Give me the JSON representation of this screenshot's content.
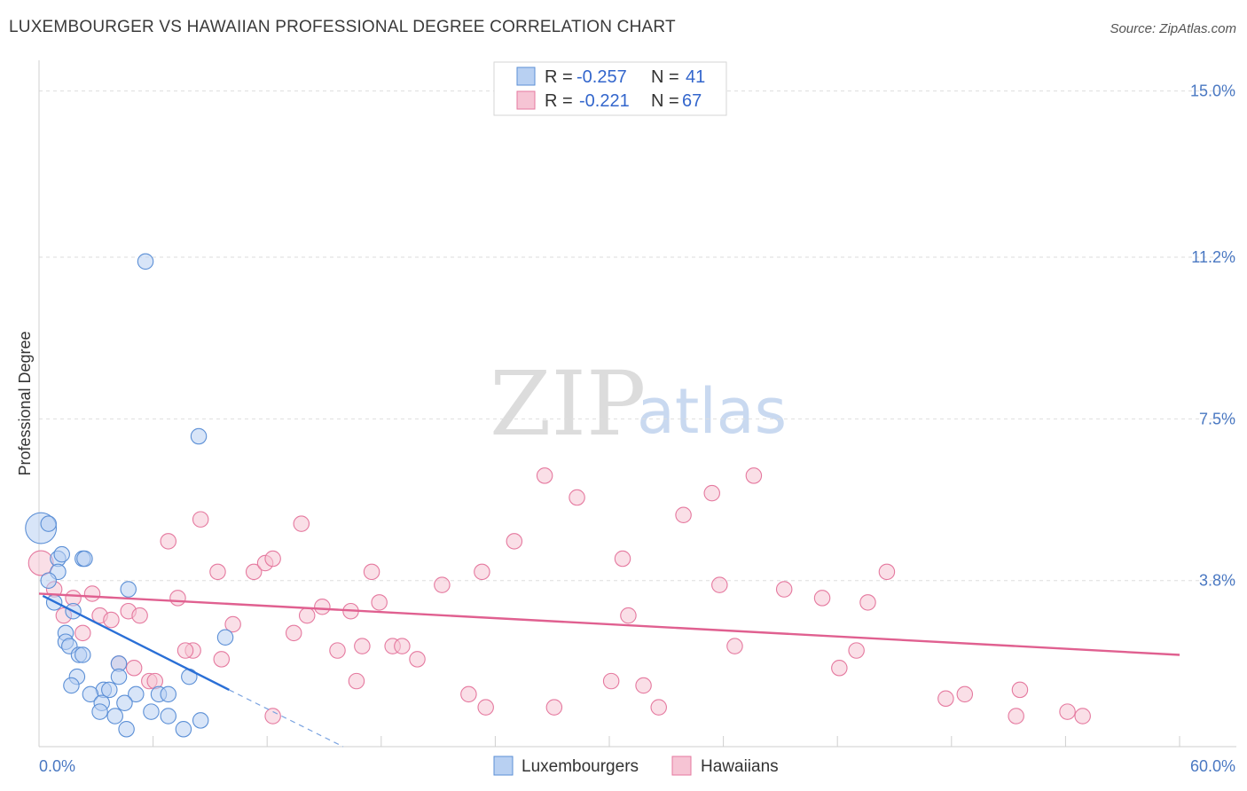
{
  "title": "LUXEMBOURGER VS HAWAIIAN PROFESSIONAL DEGREE CORRELATION CHART",
  "source": "Source: ZipAtlas.com",
  "watermark": {
    "zip": "ZIP",
    "atlas": "atlas"
  },
  "colors": {
    "blue": "#5b8fd6",
    "blue_fill": "#b8d0f2",
    "pink": "#e5799f",
    "pink_fill": "#f6c4d4",
    "axis_text": "#4a78c2"
  },
  "chart_data": {
    "type": "scatter",
    "title": "LUXEMBOURGER VS HAWAIIAN PROFESSIONAL DEGREE CORRELATION CHART",
    "xlabel": "",
    "ylabel": "Professional Degree",
    "xlim": [
      0,
      60
    ],
    "ylim": [
      0,
      15.5
    ],
    "x_tick_labels": [
      "0.0%",
      "60.0%"
    ],
    "y_ticks": [
      3.8,
      7.5,
      11.2,
      15.0
    ],
    "y_tick_labels": [
      "3.8%",
      "7.5%",
      "11.2%",
      "15.0%"
    ],
    "legend_stats": [
      {
        "r_label": "R =",
        "r": "-0.257",
        "n_label": "N =",
        "n": "41"
      },
      {
        "r_label": "R =",
        "r": "-0.221",
        "n_label": "N =",
        "n": "67"
      }
    ],
    "series": [
      {
        "name": "Luxembourgers",
        "trend": {
          "x0": 0.2,
          "y0": 3.45,
          "x1": 10.0,
          "y1": 1.3,
          "dash_to_x": 16.0,
          "dash_to_y": 0.0
        },
        "points": [
          [
            0.1,
            5.0,
            20
          ],
          [
            0.5,
            5.1,
            10
          ],
          [
            1.0,
            4.3,
            10
          ],
          [
            1.0,
            4.0,
            10
          ],
          [
            1.2,
            4.4,
            10
          ],
          [
            2.3,
            4.3,
            10
          ],
          [
            2.4,
            4.3,
            10
          ],
          [
            0.5,
            3.8,
            10
          ],
          [
            4.7,
            3.6,
            10
          ],
          [
            0.8,
            3.3,
            10
          ],
          [
            1.8,
            3.1,
            10
          ],
          [
            1.4,
            2.6,
            10
          ],
          [
            1.4,
            2.4,
            10
          ],
          [
            1.6,
            2.3,
            10
          ],
          [
            2.1,
            2.1,
            10
          ],
          [
            2.3,
            2.1,
            10
          ],
          [
            4.2,
            1.9,
            10
          ],
          [
            2.0,
            1.6,
            10
          ],
          [
            4.2,
            1.6,
            10
          ],
          [
            1.7,
            1.4,
            10
          ],
          [
            7.9,
            1.6,
            10
          ],
          [
            3.4,
            1.3,
            10
          ],
          [
            3.7,
            1.3,
            10
          ],
          [
            5.1,
            1.2,
            10
          ],
          [
            2.7,
            1.2,
            10
          ],
          [
            3.3,
            1.0,
            10
          ],
          [
            4.5,
            1.0,
            10
          ],
          [
            6.3,
            1.2,
            10
          ],
          [
            6.8,
            1.2,
            10
          ],
          [
            3.2,
            0.8,
            10
          ],
          [
            4.0,
            0.7,
            10
          ],
          [
            5.9,
            0.8,
            10
          ],
          [
            6.8,
            0.7,
            10
          ],
          [
            8.5,
            0.6,
            10
          ],
          [
            4.6,
            0.4,
            10
          ],
          [
            7.6,
            0.4,
            10
          ],
          [
            9.8,
            2.5,
            10
          ],
          [
            8.4,
            7.1,
            10
          ],
          [
            5.6,
            11.1,
            10
          ]
        ]
      },
      {
        "name": "Hawaiians",
        "trend": {
          "x0": 0.0,
          "y0": 3.5,
          "x1": 60.0,
          "y1": 2.1
        },
        "points": [
          [
            0.1,
            4.2,
            16
          ],
          [
            0.8,
            3.6,
            10
          ],
          [
            1.8,
            3.4,
            10
          ],
          [
            2.8,
            3.5,
            10
          ],
          [
            7.3,
            3.4,
            10
          ],
          [
            1.3,
            3.0,
            10
          ],
          [
            3.2,
            3.0,
            10
          ],
          [
            3.8,
            2.9,
            10
          ],
          [
            4.7,
            3.1,
            10
          ],
          [
            5.3,
            3.0,
            10
          ],
          [
            2.3,
            2.6,
            10
          ],
          [
            6.8,
            4.7,
            10
          ],
          [
            8.5,
            5.2,
            10
          ],
          [
            9.4,
            4.0,
            10
          ],
          [
            11.3,
            4.0,
            10
          ],
          [
            11.9,
            4.2,
            10
          ],
          [
            12.3,
            4.3,
            10
          ],
          [
            13.8,
            5.1,
            10
          ],
          [
            17.5,
            4.0,
            10
          ],
          [
            21.2,
            3.7,
            10
          ],
          [
            23.3,
            4.0,
            10
          ],
          [
            25.0,
            4.7,
            10
          ],
          [
            26.6,
            6.2,
            10
          ],
          [
            28.3,
            5.7,
            10
          ],
          [
            30.7,
            4.3,
            10
          ],
          [
            31.0,
            3.0,
            10
          ],
          [
            33.9,
            5.3,
            10
          ],
          [
            35.4,
            5.8,
            10
          ],
          [
            36.6,
            2.3,
            10
          ],
          [
            37.6,
            6.2,
            10
          ],
          [
            35.8,
            3.7,
            10
          ],
          [
            39.2,
            3.6,
            10
          ],
          [
            41.2,
            3.4,
            10
          ],
          [
            43.6,
            3.3,
            10
          ],
          [
            44.6,
            4.0,
            10
          ],
          [
            43.0,
            2.2,
            10
          ],
          [
            42.1,
            1.8,
            10
          ],
          [
            8.1,
            2.2,
            10
          ],
          [
            7.7,
            2.2,
            10
          ],
          [
            10.2,
            2.8,
            10
          ],
          [
            9.6,
            2.0,
            10
          ],
          [
            13.4,
            2.6,
            10
          ],
          [
            14.1,
            3.0,
            10
          ],
          [
            14.9,
            3.2,
            10
          ],
          [
            15.7,
            2.2,
            10
          ],
          [
            16.4,
            3.1,
            10
          ],
          [
            17.0,
            2.3,
            10
          ],
          [
            17.9,
            3.3,
            10
          ],
          [
            18.6,
            2.3,
            10
          ],
          [
            19.1,
            2.3,
            10
          ],
          [
            19.9,
            2.0,
            10
          ],
          [
            4.2,
            1.9,
            10
          ],
          [
            5.0,
            1.8,
            10
          ],
          [
            5.8,
            1.5,
            10
          ],
          [
            6.1,
            1.5,
            10
          ],
          [
            16.7,
            1.5,
            10
          ],
          [
            22.6,
            1.2,
            10
          ],
          [
            23.5,
            0.9,
            10
          ],
          [
            27.1,
            0.9,
            10
          ],
          [
            30.1,
            1.5,
            10
          ],
          [
            31.8,
            1.4,
            10
          ],
          [
            32.6,
            0.9,
            10
          ],
          [
            12.3,
            0.7,
            10
          ],
          [
            47.7,
            1.1,
            10
          ],
          [
            48.7,
            1.2,
            10
          ],
          [
            51.6,
            1.3,
            10
          ],
          [
            51.4,
            0.7,
            10
          ],
          [
            54.1,
            0.8,
            10
          ],
          [
            54.9,
            0.7,
            10
          ]
        ]
      }
    ]
  }
}
